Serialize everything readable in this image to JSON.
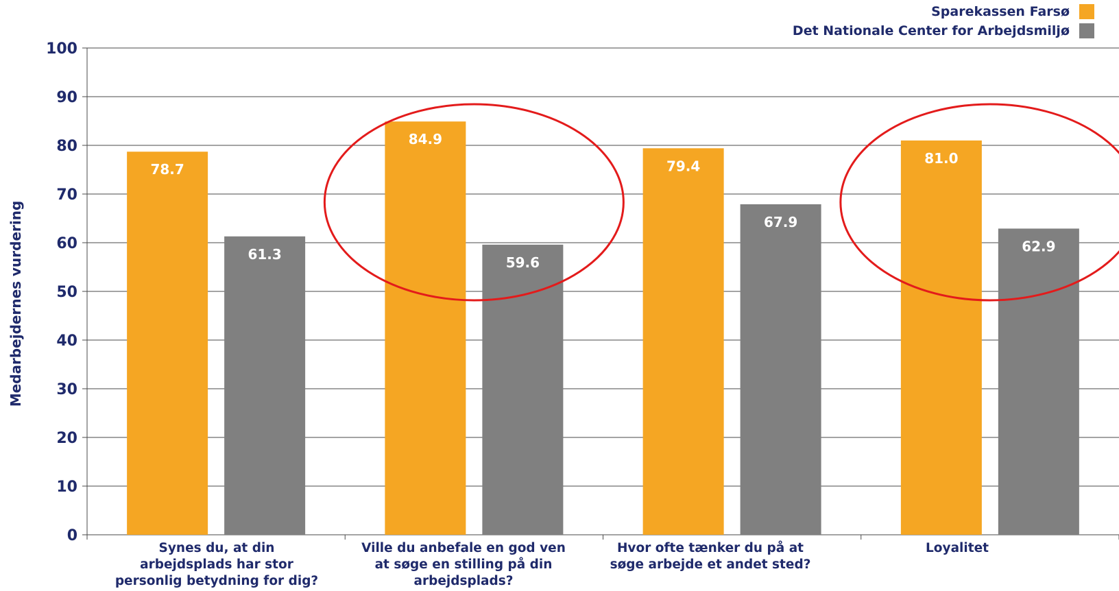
{
  "chart_data": {
    "type": "bar",
    "ylabel": "Medarbejdernes vurdering",
    "xlabel": "",
    "ylim": [
      0,
      100
    ],
    "yticks": [
      "0",
      "10",
      "20",
      "30",
      "40",
      "50",
      "60",
      "70",
      "80",
      "90",
      "100"
    ],
    "grid": true,
    "legend_position": "top-right",
    "categories": [
      "Synes du, at din arbejdsplads har stor personlig betydning for dig?",
      "Ville du anbefale en god ven at søge en stilling på din arbejdsplads?",
      "Hvor ofte tænker du på at søge arbejde et andet sted?",
      "Loyalitet"
    ],
    "category_lines": [
      [
        "Synes du, at din",
        "arbejdsplads har stor",
        "personlig betydning for dig?"
      ],
      [
        "Ville du anbefale en god ven",
        "at søge en stilling på din",
        "arbejdsplads?"
      ],
      [
        "Hvor ofte tænker du på at",
        "søge arbejde et andet sted?"
      ],
      [
        "Loyalitet"
      ]
    ],
    "series": [
      {
        "name": "Sparekassen Farsø",
        "color": "#f5a623",
        "values": [
          78.7,
          84.9,
          79.4,
          81.0
        ],
        "labels": [
          "78.7",
          "84.9",
          "79.4",
          "81.0"
        ]
      },
      {
        "name": "Det Nationale Center for Arbejdsmiljø",
        "color": "#808080",
        "values": [
          61.3,
          59.6,
          67.9,
          62.9
        ],
        "labels": [
          "61.3",
          "59.6",
          "67.9",
          "62.9"
        ]
      }
    ],
    "annotations": [
      {
        "type": "circle",
        "around_category": 1,
        "color": "#e31b1b"
      },
      {
        "type": "circle",
        "around_category": 3,
        "color": "#e31b1b"
      }
    ]
  }
}
